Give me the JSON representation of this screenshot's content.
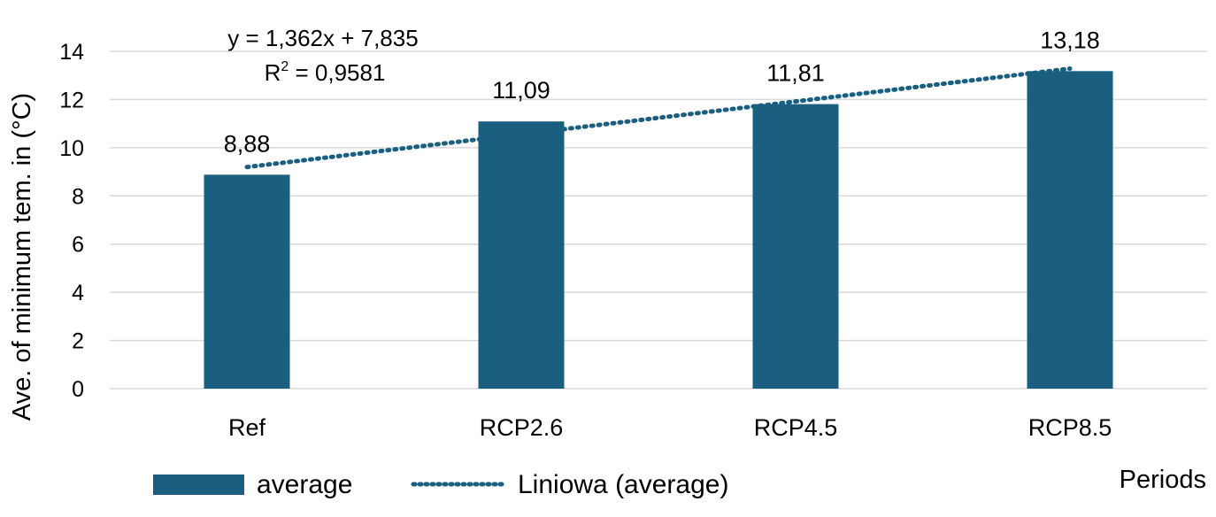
{
  "chart_data": {
    "type": "bar",
    "categories": [
      "Ref",
      "RCP2.6",
      "RCP4.5",
      "RCP8.5"
    ],
    "series": [
      {
        "name": "average",
        "values": [
          8.88,
          11.09,
          11.81,
          13.18
        ],
        "data_labels": [
          "8,88",
          "11,09",
          "11,81",
          "13,18"
        ]
      }
    ],
    "trendline": {
      "legend_label": "Liniowa (average)",
      "slope": 1.362,
      "intercept": 7.835,
      "equation_text": "y = 1,362x + 7,835",
      "r2_prefix": "R",
      "r2_sup": "2",
      "r2_value": " = 0,9581"
    },
    "xlabel": "Periods",
    "ylabel": "Ave. of minimum tem. in (°C)",
    "ylim": [
      0,
      14
    ],
    "yticks": [
      0,
      2,
      4,
      6,
      8,
      10,
      12,
      14
    ],
    "grid": true,
    "legend_position": "bottom",
    "colors": {
      "bar": "#1a5f80",
      "trend": "#1a5f80",
      "grid": "#d9d9d9"
    }
  }
}
